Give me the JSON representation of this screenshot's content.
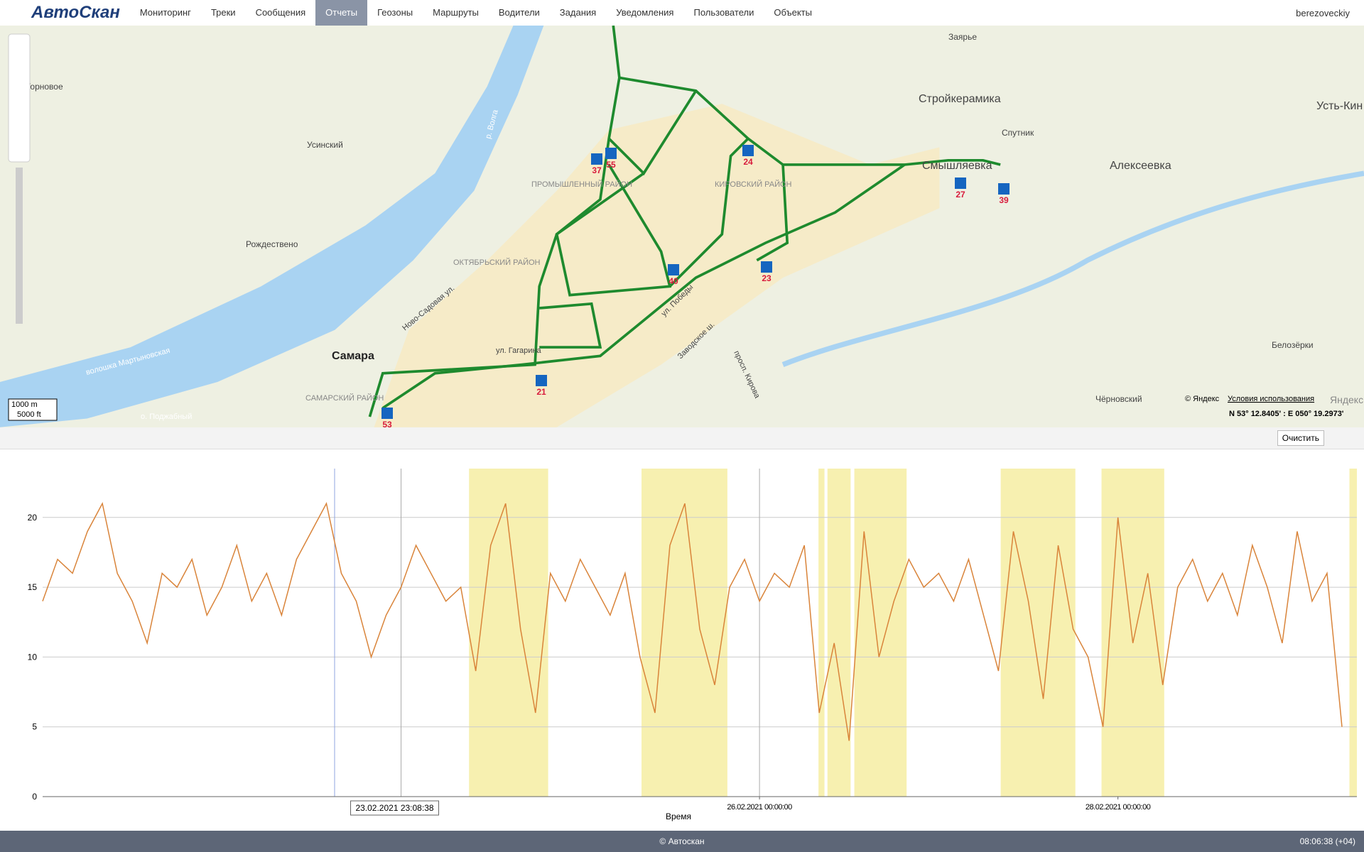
{
  "nav": {
    "logo": "АвтоСкан",
    "items": [
      "Мониторинг",
      "Треки",
      "Сообщения",
      "Отчеты",
      "Геозоны",
      "Маршруты",
      "Водители",
      "Задания",
      "Уведомления",
      "Пользователи",
      "Объекты"
    ],
    "user": "berezoveckiy"
  },
  "map": {
    "labels": [
      "Торновое",
      "Заярье",
      "Стройкерамика",
      "Усть-Кин",
      "Спутник",
      "Алексеевка",
      "Смышляевка",
      "Усинский",
      "ПРОМЫШЛЕННЫЙ РАЙОН",
      "КИРОВСКИЙ РАЙОН",
      "Рождествено",
      "ОКТЯБРЬСКИЙ РАЙОН",
      "Самара",
      "САМАРСКИЙ РАЙОН",
      "Белозёрки",
      "Чёрновский",
      "ул. Гагарина",
      "ул. Победы",
      "Заводское ш.",
      "просп. Кирова",
      "Ново-Садовая ул.",
      "волошка Мартыновская",
      "о. Поджабный",
      "р. Волга"
    ],
    "parkings": [
      "37",
      "55",
      "24",
      "27",
      "39",
      "40",
      "23",
      "21",
      "53"
    ],
    "scale": [
      "1000 m",
      "5000 ft"
    ],
    "copyright": "© Яндекс",
    "terms": "Условия использования",
    "brand": "Яндекс",
    "coords": "N 53° 12.8405' : E 050° 19.2973'"
  },
  "toolbar": {
    "clear": "Очистить"
  },
  "chart": {
    "type": "line",
    "xlabel": "Время",
    "color": "#d9843a",
    "band_color": "#f7f0b0",
    "ylim": [
      0,
      23.5
    ],
    "yticks": [
      0,
      5,
      10,
      15,
      20
    ],
    "xlim": [
      -24,
      152
    ],
    "xticks": [
      {
        "value": 72,
        "label": "26.02.2021 00:00:00"
      },
      {
        "value": 120,
        "label": "28.02.2021 00:00:00"
      }
    ],
    "cursor": {
      "value": 23.14,
      "label": "23.02.2021 23:08:38"
    },
    "markers": [
      15.1,
      24,
      72
    ],
    "highlights": [
      [
        33.1,
        43.7
      ],
      [
        56.2,
        67.7
      ],
      [
        79.9,
        80.7
      ],
      [
        81.1,
        84.2
      ],
      [
        84.7,
        91.7
      ],
      [
        104.3,
        114.3
      ],
      [
        117.8,
        126.2
      ],
      [
        151,
        152
      ]
    ],
    "x": [
      -24,
      -22,
      -20,
      -18,
      -16,
      -14,
      -12,
      -10,
      -8,
      -6,
      -4,
      -2,
      0,
      2,
      4,
      6,
      8,
      10,
      12,
      14,
      16,
      18,
      20,
      22,
      24,
      26,
      28,
      30,
      32,
      34,
      36,
      38,
      40,
      42,
      44,
      46,
      48,
      50,
      52,
      54,
      56,
      58,
      60,
      62,
      64,
      66,
      68,
      70,
      72,
      74,
      76,
      78,
      80,
      82,
      84,
      86,
      88,
      90,
      92,
      94,
      96,
      98,
      100,
      102,
      104,
      106,
      108,
      110,
      112,
      114,
      116,
      118,
      120,
      122,
      124,
      126,
      128,
      130,
      132,
      134,
      136,
      138,
      140,
      142,
      144,
      146,
      148,
      150
    ],
    "values": [
      14,
      17,
      16,
      19,
      21,
      16,
      14,
      11,
      16,
      15,
      17,
      13,
      15,
      18,
      14,
      16,
      13,
      17,
      19,
      21,
      16,
      14,
      10,
      13,
      15,
      18,
      16,
      14,
      15,
      9,
      18,
      21,
      12,
      6,
      16,
      14,
      17,
      15,
      13,
      16,
      10,
      6,
      18,
      21,
      12,
      8,
      15,
      17,
      14,
      16,
      15,
      18,
      6,
      11,
      4,
      19,
      10,
      14,
      17,
      15,
      16,
      14,
      17,
      13,
      9,
      19,
      14,
      7,
      18,
      12,
      10,
      5,
      20,
      11,
      16,
      8,
      15,
      17,
      14,
      16,
      13,
      18,
      15,
      11,
      19,
      14,
      16,
      5
    ]
  },
  "footer": {
    "copyright": "© Автоскан",
    "time": "08:06:38 (+04)"
  }
}
